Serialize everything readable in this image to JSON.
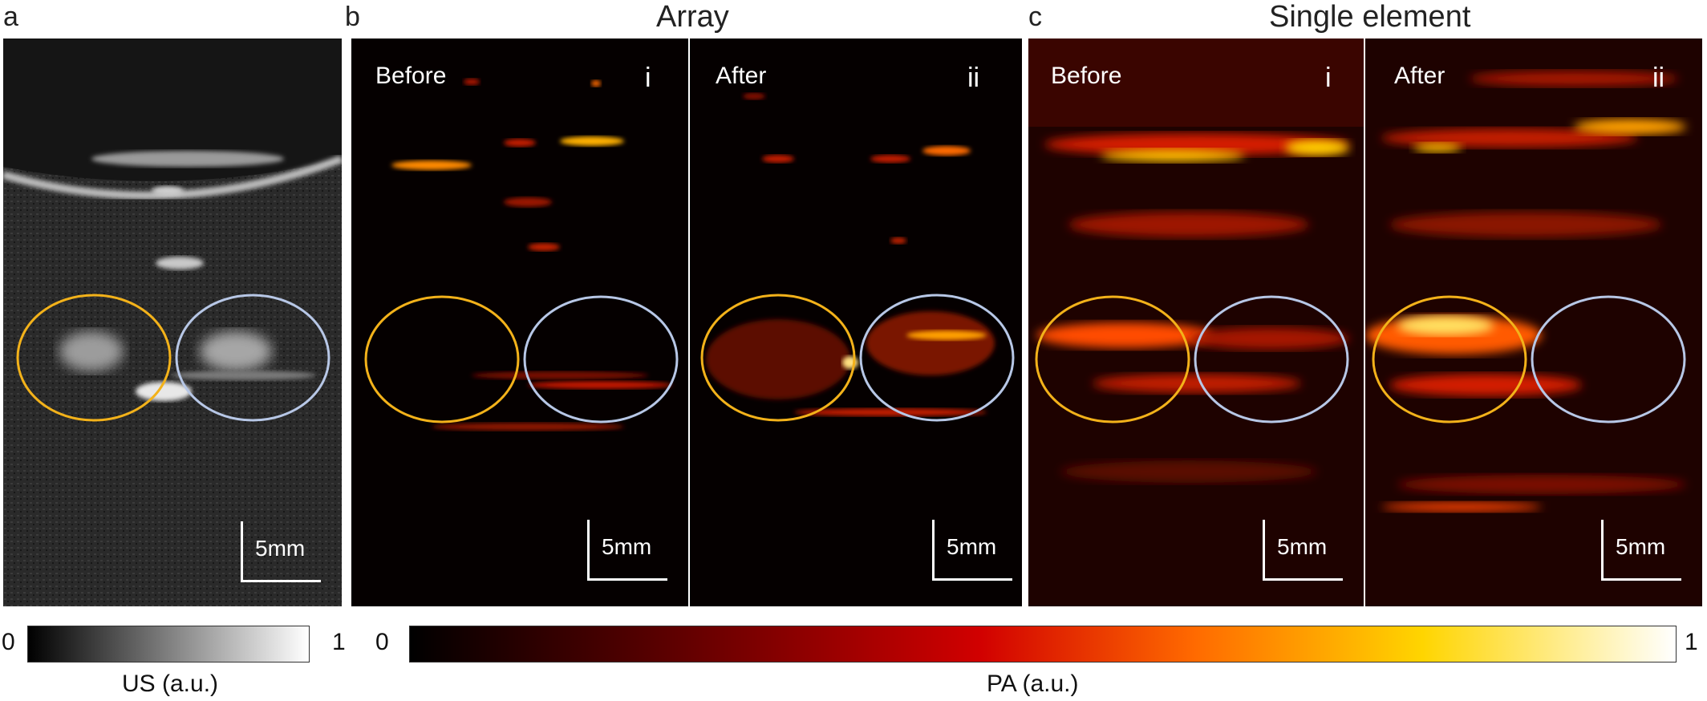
{
  "panel_labels": {
    "a": "a",
    "b": "b",
    "c": "c"
  },
  "titles": {
    "array": "Array",
    "single": "Single element"
  },
  "overlay": {
    "before": "Before",
    "after": "After",
    "roman_i": "i",
    "roman_ii": "ii"
  },
  "scale_bar_text": "5mm",
  "colorbars": {
    "us": {
      "min": "0",
      "max": "1",
      "label": "US (a.u.)",
      "colormap": "gray",
      "start_color": "#000000",
      "end_color": "#ffffff"
    },
    "pa": {
      "min": "0",
      "max": "1",
      "label": "PA (a.u.)",
      "colormap": "hot",
      "stops": [
        "#000000",
        "#5a0000",
        "#d10000",
        "#ff6a00",
        "#ffd500",
        "#ffffff"
      ]
    }
  },
  "roi_colors": {
    "left": "#f3b21a",
    "right": "#b7c7e6"
  }
}
